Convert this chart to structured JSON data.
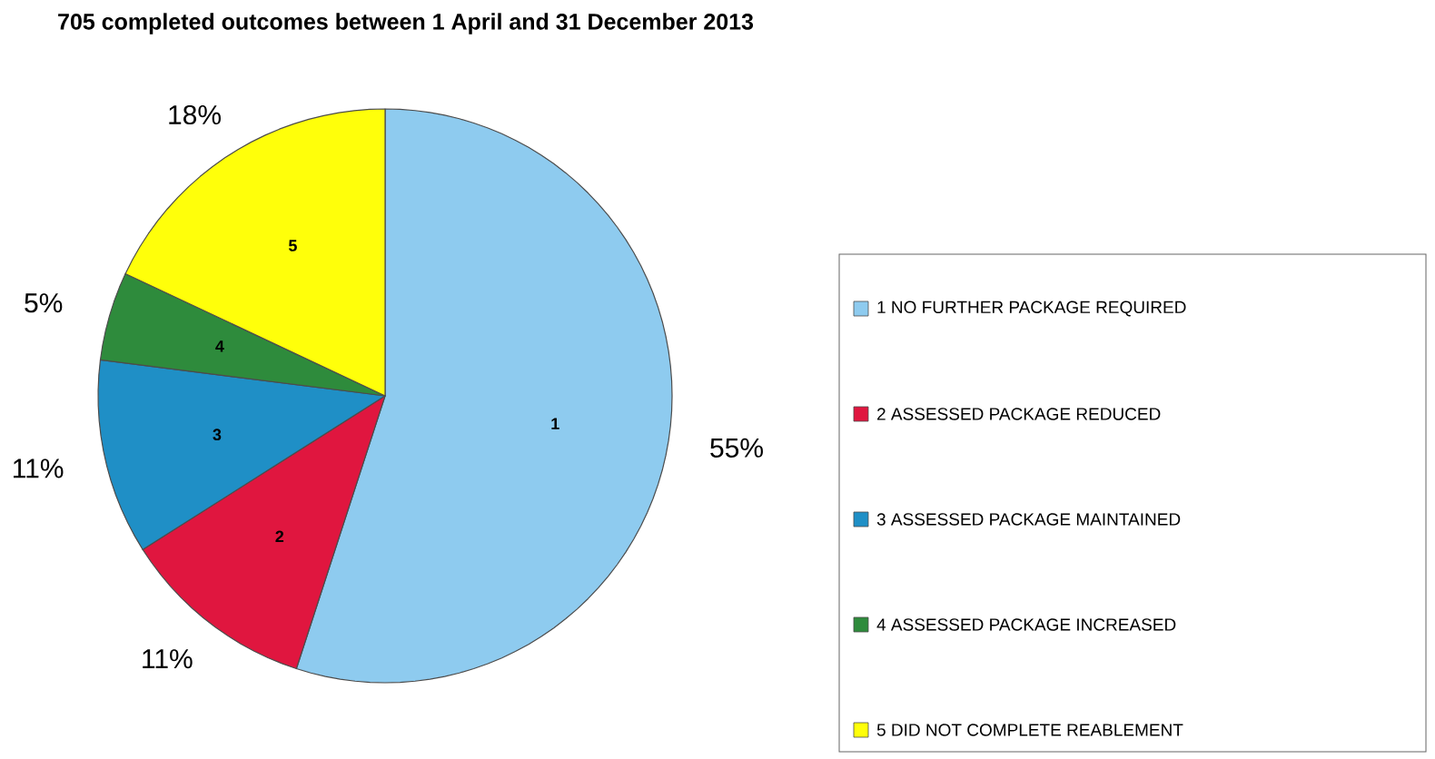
{
  "chart_data": {
    "type": "pie",
    "title": "705 completed outcomes between 1 April and 31 December 2013",
    "categories": [
      "1 NO FURTHER PACKAGE REQUIRED",
      "2 ASSESSED PACKAGE REDUCED",
      "3 ASSESSED PACKAGE MAINTAINED",
      "4 ASSESSED PACKAGE INCREASED",
      "5 DID NOT COMPLETE REABLEMENT"
    ],
    "values": [
      55,
      11,
      11,
      5,
      18
    ],
    "value_labels": [
      "55%",
      "11%",
      "11%",
      "5%",
      "18%"
    ],
    "colors": [
      "#8ecbef",
      "#e0163f",
      "#1f8fc6",
      "#2e8b3c",
      "#ffff0a"
    ],
    "annotations": [
      "1",
      "2",
      "3",
      "4",
      "5"
    ],
    "legend": "right"
  }
}
